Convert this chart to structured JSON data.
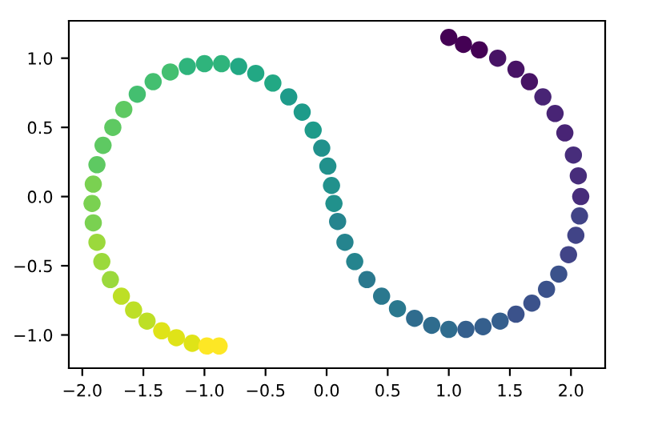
{
  "chart_data": {
    "type": "scatter",
    "xlim": [
      -2.11,
      2.28
    ],
    "ylim": [
      -1.24,
      1.27
    ],
    "xticks": [
      {
        "value": -2.0,
        "label": "−2.0"
      },
      {
        "value": -1.5,
        "label": "−1.5"
      },
      {
        "value": -1.0,
        "label": "−1.0"
      },
      {
        "value": -0.5,
        "label": "−0.5"
      },
      {
        "value": 0.0,
        "label": "0.0"
      },
      {
        "value": 0.5,
        "label": "0.5"
      },
      {
        "value": 1.0,
        "label": "1.0"
      },
      {
        "value": 1.5,
        "label": "1.5"
      },
      {
        "value": 2.0,
        "label": "2.0"
      }
    ],
    "yticks": [
      {
        "value": -1.0,
        "label": "−1.0"
      },
      {
        "value": -0.5,
        "label": "−0.5"
      },
      {
        "value": 0.0,
        "label": "0.0"
      },
      {
        "value": 0.5,
        "label": "0.5"
      },
      {
        "value": 1.0,
        "label": "1.0"
      }
    ],
    "marker": "circle",
    "series": [
      {
        "x": [
          1.0,
          1.12,
          1.25,
          1.4,
          1.55,
          1.66,
          1.77,
          1.87,
          1.95,
          2.02,
          2.06,
          2.08,
          2.07,
          2.04,
          1.98,
          1.9,
          1.8,
          1.68,
          1.55,
          1.42,
          1.28,
          1.14,
          1.0,
          0.86,
          0.72,
          0.58,
          0.45,
          0.33,
          0.23,
          0.15,
          0.09,
          0.06,
          0.04,
          0.01,
          -0.04,
          -0.11,
          -0.2,
          -0.31,
          -0.44,
          -0.58,
          -0.72,
          -0.86,
          -1.0,
          -1.14,
          -1.28,
          -1.42,
          -1.55,
          -1.66,
          -1.75,
          -1.83,
          -1.88,
          -1.91,
          -1.92,
          -1.91,
          -1.88,
          -1.84,
          -1.77,
          -1.68,
          -1.58,
          -1.47,
          -1.35,
          -1.23,
          -1.1,
          -0.98,
          -0.88
        ],
        "values": [
          1.15,
          1.1,
          1.06,
          1.0,
          0.92,
          0.83,
          0.72,
          0.6,
          0.46,
          0.3,
          0.15,
          0.0,
          -0.14,
          -0.28,
          -0.42,
          -0.56,
          -0.67,
          -0.77,
          -0.85,
          -0.9,
          -0.94,
          -0.96,
          -0.96,
          -0.93,
          -0.88,
          -0.81,
          -0.72,
          -0.6,
          -0.47,
          -0.33,
          -0.18,
          -0.05,
          0.08,
          0.22,
          0.35,
          0.48,
          0.61,
          0.72,
          0.82,
          0.89,
          0.94,
          0.96,
          0.96,
          0.94,
          0.9,
          0.83,
          0.74,
          0.63,
          0.5,
          0.37,
          0.23,
          0.09,
          -0.05,
          -0.19,
          -0.33,
          -0.47,
          -0.6,
          -0.72,
          -0.82,
          -0.9,
          -0.97,
          -1.02,
          -1.06,
          -1.08,
          -1.08
        ],
        "colors": [
          "#440154",
          "#440154",
          "#440154",
          "#471365",
          "#471365",
          "#471365",
          "#482475",
          "#482475",
          "#482475",
          "#472d7b",
          "#472d7b",
          "#472d7b",
          "#414487",
          "#414487",
          "#414487",
          "#3b528b",
          "#3b528b",
          "#3b528b",
          "#3b528b",
          "#355f8d",
          "#355f8d",
          "#355f8d",
          "#2f6c8e",
          "#2f6c8e",
          "#2f6c8e",
          "#2a788e",
          "#2a788e",
          "#2a788e",
          "#25848e",
          "#25848e",
          "#25848e",
          "#21918c",
          "#21918c",
          "#21918c",
          "#21918c",
          "#1e9b8a",
          "#1e9b8a",
          "#1e9b8a",
          "#22a884",
          "#22a884",
          "#22a884",
          "#2fb47c",
          "#2fb47c",
          "#2fb47c",
          "#44bf70",
          "#44bf70",
          "#44bf70",
          "#5ec962",
          "#5ec962",
          "#5ec962",
          "#5ec962",
          "#7ad151",
          "#7ad151",
          "#7ad151",
          "#9bd93c",
          "#9bd93c",
          "#9bd93c",
          "#bddf26",
          "#bddf26",
          "#bddf26",
          "#dfe318",
          "#dfe318",
          "#dfe318",
          "#fde725",
          "#fde725"
        ]
      }
    ]
  }
}
